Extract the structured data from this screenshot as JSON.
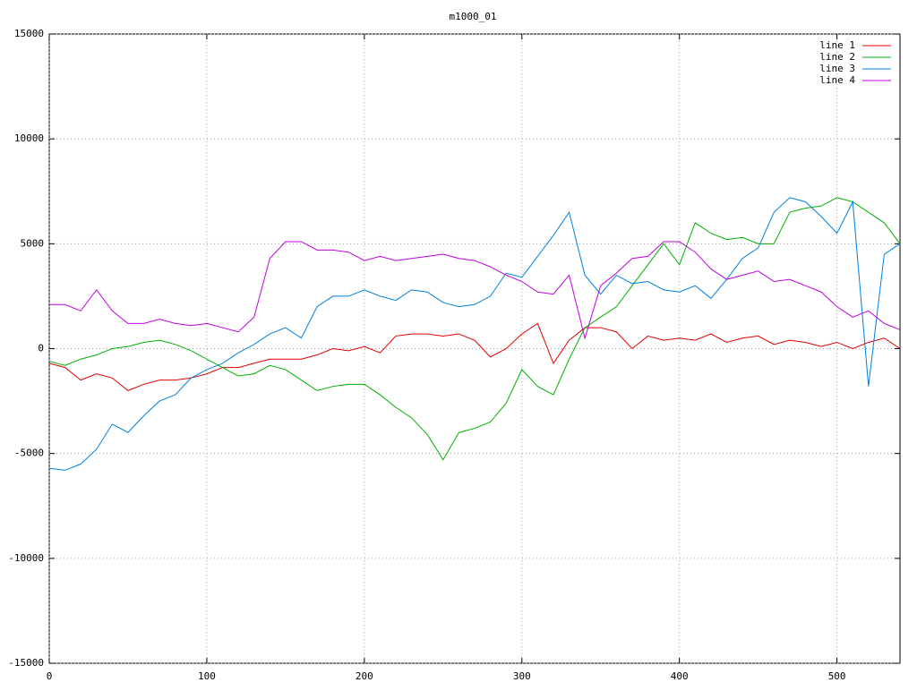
{
  "chart_data": {
    "type": "line",
    "title": "m1000_01",
    "x": [
      0,
      10,
      20,
      30,
      40,
      50,
      60,
      70,
      80,
      90,
      100,
      110,
      120,
      130,
      140,
      150,
      160,
      170,
      180,
      190,
      200,
      210,
      220,
      230,
      240,
      250,
      260,
      270,
      280,
      290,
      300,
      310,
      320,
      330,
      340,
      350,
      360,
      370,
      380,
      390,
      400,
      410,
      420,
      430,
      440,
      450,
      460,
      470,
      480,
      490,
      500,
      510,
      520,
      530,
      540
    ],
    "xlim": [
      0,
      540
    ],
    "xticks": [
      0,
      100,
      200,
      300,
      400,
      500
    ],
    "ylim": [
      -15000,
      15000
    ],
    "yticks": [
      -15000,
      -10000,
      -5000,
      0,
      5000,
      10000,
      15000
    ],
    "grid": true,
    "legend": "top-right",
    "series": [
      {
        "name": "line 1",
        "color": "#e00000",
        "values": [
          -700,
          -900,
          -1500,
          -1200,
          -1400,
          -2000,
          -1700,
          -1500,
          -1500,
          -1400,
          -1200,
          -900,
          -900,
          -700,
          -500,
          -500,
          -500,
          -300,
          0,
          -100,
          100,
          -200,
          600,
          700,
          700,
          600,
          700,
          400,
          -400,
          0,
          700,
          1200,
          -700,
          400,
          1000,
          1000,
          800,
          0,
          600,
          400,
          500,
          400,
          700,
          300,
          500,
          600,
          200,
          400,
          300,
          100,
          300,
          0,
          300,
          500,
          0
        ]
      },
      {
        "name": "line 2",
        "color": "#00b000",
        "values": [
          -600,
          -800,
          -500,
          -300,
          0,
          100,
          300,
          400,
          200,
          -100,
          -500,
          -900,
          -1300,
          -1200,
          -800,
          -1000,
          -1500,
          -2000,
          -1800,
          -1700,
          -1700,
          -2200,
          -2800,
          -3300,
          -4100,
          -5300,
          -4000,
          -3800,
          -3500,
          -2600,
          -1000,
          -1800,
          -2200,
          -500,
          1000,
          1500,
          2000,
          3000,
          4000,
          5000,
          4000,
          6000,
          5500,
          5200,
          5300,
          5000,
          5000,
          6500,
          6700,
          6800,
          7200,
          7000,
          6500,
          6000,
          5000
        ]
      },
      {
        "name": "line 3",
        "color": "#0080e0",
        "values": [
          -5700,
          -5800,
          -5500,
          -4800,
          -3600,
          -4000,
          -3200,
          -2500,
          -2200,
          -1400,
          -1000,
          -700,
          -200,
          200,
          700,
          1000,
          500,
          2000,
          2500,
          2500,
          2800,
          2500,
          2300,
          2800,
          2700,
          2200,
          2000,
          2100,
          2500,
          3600,
          3400,
          4400,
          5400,
          6500,
          3500,
          2600,
          3500,
          3100,
          3200,
          2800,
          2700,
          3000,
          2400,
          3300,
          4300,
          4800,
          6500,
          7200,
          7000,
          6300,
          5500,
          7000,
          -1800,
          4500,
          5000
        ]
      },
      {
        "name": "line 4",
        "color": "#c000e0",
        "values": [
          2100,
          2100,
          1800,
          2800,
          1800,
          1200,
          1200,
          1400,
          1200,
          1100,
          1200,
          1000,
          800,
          1500,
          4300,
          5100,
          5100,
          4700,
          4700,
          4600,
          4200,
          4400,
          4200,
          4300,
          4400,
          4500,
          4300,
          4200,
          3900,
          3500,
          3200,
          2700,
          2600,
          3500,
          500,
          3000,
          3600,
          4300,
          4400,
          5100,
          5100,
          4600,
          3800,
          3300,
          3500,
          3700,
          3200,
          3300,
          3000,
          2700,
          2000,
          1500,
          1800,
          1200,
          900
        ]
      }
    ]
  }
}
